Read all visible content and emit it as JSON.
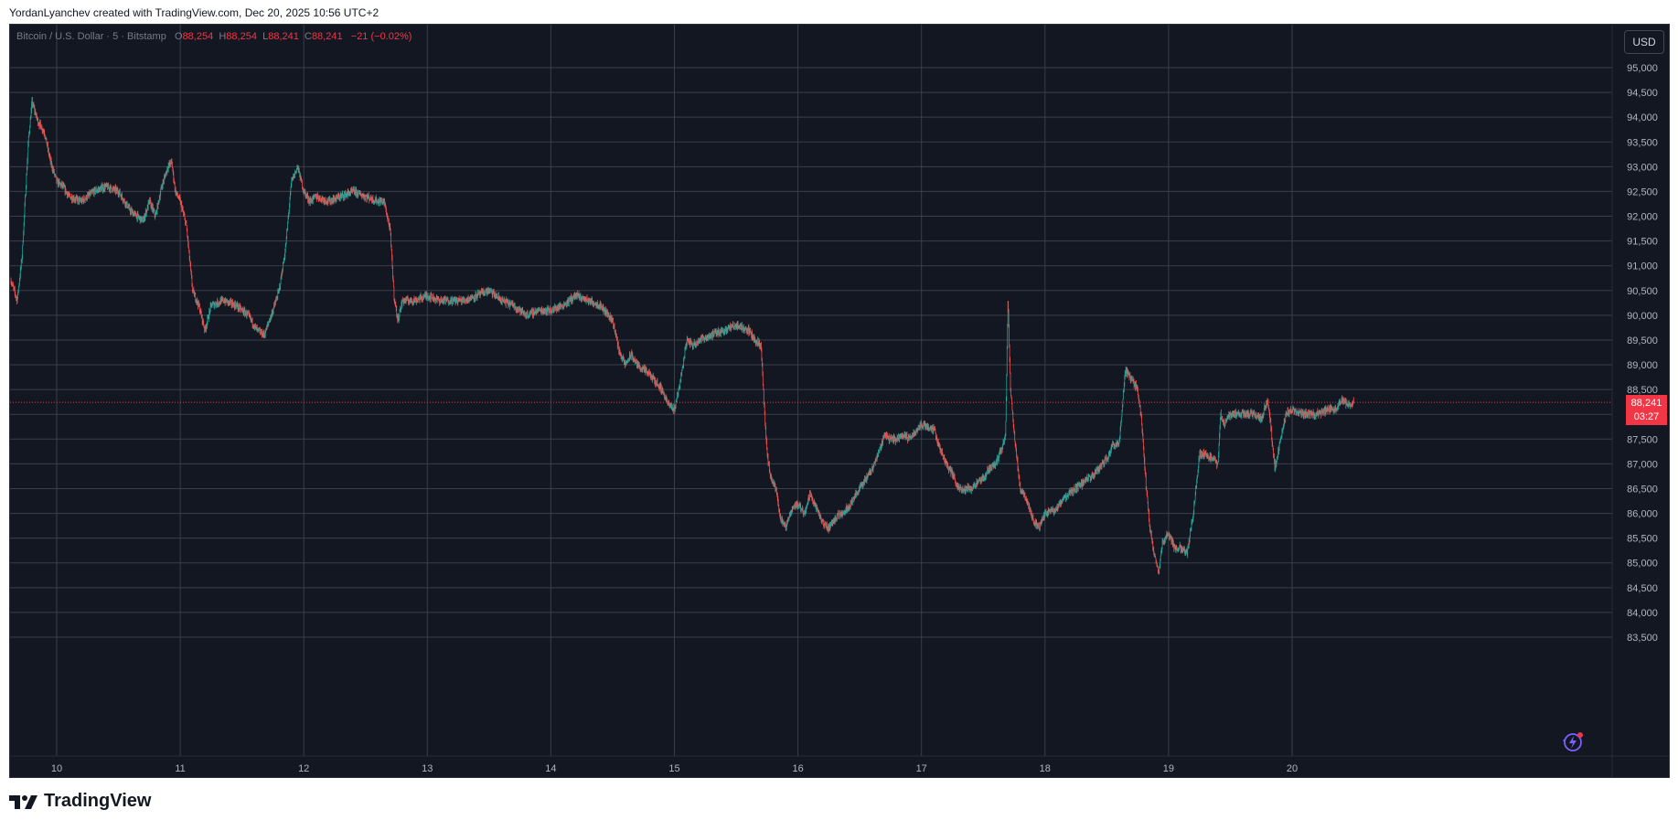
{
  "header": {
    "credit": "YordanLyanchev created with TradingView.com, Dec 20, 2025 10:56 UTC+2"
  },
  "legend": {
    "symbol": "Bitcoin / U.S. Dollar · 5 · Bitstamp",
    "o_key": "O",
    "o_val": "88,254",
    "h_key": "H",
    "h_val": "88,254",
    "l_key": "L",
    "l_val": "88,241",
    "c_key": "C",
    "c_val": "88,241",
    "change": "−21 (−0.02%)"
  },
  "currency_button": "USD",
  "last_price": {
    "value": "88,241",
    "countdown": "03:27"
  },
  "footer": {
    "brand": "TradingView"
  },
  "colors": {
    "up": "#26a69a",
    "down": "#ef5350",
    "last_price": "#f23645",
    "background": "#131722",
    "grid": "#3b3f4b"
  },
  "icons": {
    "spark": "lightning-assistant-icon",
    "logo": "tradingview-logo-icon"
  },
  "chart_data": {
    "type": "candlestick",
    "interval": "5",
    "x_tick_labels": [
      "10",
      "11",
      "12",
      "13",
      "14",
      "15",
      "16",
      "17",
      "18",
      "19",
      "20"
    ],
    "y_tick_labels": [
      "95,000",
      "94,500",
      "94,000",
      "93,500",
      "93,000",
      "92,500",
      "92,000",
      "91,500",
      "91,000",
      "90,500",
      "90,000",
      "89,500",
      "89,000",
      "88,500",
      "88,000",
      "87,500",
      "87,000",
      "86,500",
      "86,000",
      "85,500",
      "85,000",
      "84,500",
      "84,000",
      "83,500"
    ],
    "ylim": [
      83350,
      95500
    ],
    "xlim": [
      9.62,
      20.75
    ],
    "last_price": 88241,
    "price_path": [
      [
        9.63,
        90700
      ],
      [
        9.68,
        90300
      ],
      [
        9.72,
        91200
      ],
      [
        9.77,
        93500
      ],
      [
        9.8,
        94300
      ],
      [
        9.85,
        93900
      ],
      [
        9.9,
        93700
      ],
      [
        9.95,
        93100
      ],
      [
        10.0,
        92700
      ],
      [
        10.05,
        92600
      ],
      [
        10.1,
        92400
      ],
      [
        10.2,
        92300
      ],
      [
        10.3,
        92500
      ],
      [
        10.4,
        92600
      ],
      [
        10.5,
        92500
      ],
      [
        10.6,
        92100
      ],
      [
        10.7,
        91900
      ],
      [
        10.75,
        92300
      ],
      [
        10.8,
        92000
      ],
      [
        10.85,
        92600
      ],
      [
        10.9,
        93000
      ],
      [
        10.93,
        93100
      ],
      [
        10.96,
        92500
      ],
      [
        11.0,
        92300
      ],
      [
        11.05,
        91800
      ],
      [
        11.1,
        90500
      ],
      [
        11.15,
        90200
      ],
      [
        11.2,
        89700
      ],
      [
        11.25,
        90200
      ],
      [
        11.35,
        90300
      ],
      [
        11.45,
        90200
      ],
      [
        11.55,
        90000
      ],
      [
        11.62,
        89700
      ],
      [
        11.68,
        89600
      ],
      [
        11.75,
        90100
      ],
      [
        11.8,
        90500
      ],
      [
        11.85,
        91300
      ],
      [
        11.9,
        92700
      ],
      [
        11.95,
        93000
      ],
      [
        12.0,
        92500
      ],
      [
        12.05,
        92300
      ],
      [
        12.1,
        92400
      ],
      [
        12.2,
        92300
      ],
      [
        12.3,
        92400
      ],
      [
        12.4,
        92500
      ],
      [
        12.5,
        92400
      ],
      [
        12.6,
        92300
      ],
      [
        12.65,
        92300
      ],
      [
        12.7,
        91700
      ],
      [
        12.73,
        90400
      ],
      [
        12.76,
        89900
      ],
      [
        12.8,
        90300
      ],
      [
        12.9,
        90300
      ],
      [
        13.0,
        90400
      ],
      [
        13.1,
        90300
      ],
      [
        13.2,
        90300
      ],
      [
        13.3,
        90300
      ],
      [
        13.4,
        90400
      ],
      [
        13.5,
        90500
      ],
      [
        13.6,
        90300
      ],
      [
        13.7,
        90200
      ],
      [
        13.8,
        90000
      ],
      [
        13.9,
        90100
      ],
      [
        14.0,
        90100
      ],
      [
        14.1,
        90200
      ],
      [
        14.2,
        90400
      ],
      [
        14.3,
        90300
      ],
      [
        14.4,
        90200
      ],
      [
        14.5,
        89900
      ],
      [
        14.55,
        89300
      ],
      [
        14.6,
        89000
      ],
      [
        14.65,
        89200
      ],
      [
        14.7,
        89000
      ],
      [
        14.8,
        88800
      ],
      [
        14.9,
        88500
      ],
      [
        14.95,
        88200
      ],
      [
        15.0,
        88100
      ],
      [
        15.05,
        88700
      ],
      [
        15.1,
        89500
      ],
      [
        15.15,
        89400
      ],
      [
        15.2,
        89500
      ],
      [
        15.3,
        89600
      ],
      [
        15.4,
        89700
      ],
      [
        15.5,
        89800
      ],
      [
        15.6,
        89700
      ],
      [
        15.65,
        89500
      ],
      [
        15.7,
        89400
      ],
      [
        15.73,
        88000
      ],
      [
        15.75,
        87200
      ],
      [
        15.78,
        86700
      ],
      [
        15.82,
        86500
      ],
      [
        15.86,
        85900
      ],
      [
        15.9,
        85700
      ],
      [
        15.95,
        86100
      ],
      [
        16.0,
        86200
      ],
      [
        16.05,
        86000
      ],
      [
        16.1,
        86400
      ],
      [
        16.15,
        86100
      ],
      [
        16.2,
        85800
      ],
      [
        16.25,
        85700
      ],
      [
        16.3,
        85900
      ],
      [
        16.35,
        86000
      ],
      [
        16.4,
        86100
      ],
      [
        16.45,
        86300
      ],
      [
        16.5,
        86500
      ],
      [
        16.55,
        86700
      ],
      [
        16.6,
        86900
      ],
      [
        16.65,
        87200
      ],
      [
        16.7,
        87600
      ],
      [
        16.75,
        87500
      ],
      [
        16.8,
        87500
      ],
      [
        16.85,
        87600
      ],
      [
        16.9,
        87500
      ],
      [
        17.0,
        87800
      ],
      [
        17.1,
        87700
      ],
      [
        17.15,
        87300
      ],
      [
        17.2,
        87000
      ],
      [
        17.25,
        86800
      ],
      [
        17.3,
        86500
      ],
      [
        17.35,
        86500
      ],
      [
        17.4,
        86500
      ],
      [
        17.45,
        86600
      ],
      [
        17.5,
        86700
      ],
      [
        17.55,
        86900
      ],
      [
        17.6,
        87000
      ],
      [
        17.65,
        87300
      ],
      [
        17.68,
        87600
      ],
      [
        17.7,
        90300
      ],
      [
        17.72,
        88500
      ],
      [
        17.75,
        87600
      ],
      [
        17.8,
        86500
      ],
      [
        17.85,
        86300
      ],
      [
        17.9,
        85900
      ],
      [
        17.95,
        85700
      ],
      [
        18.0,
        86000
      ],
      [
        18.1,
        86100
      ],
      [
        18.15,
        86300
      ],
      [
        18.2,
        86400
      ],
      [
        18.3,
        86600
      ],
      [
        18.4,
        86800
      ],
      [
        18.5,
        87100
      ],
      [
        18.55,
        87400
      ],
      [
        18.6,
        87400
      ],
      [
        18.62,
        88000
      ],
      [
        18.65,
        88900
      ],
      [
        18.7,
        88700
      ],
      [
        18.75,
        88500
      ],
      [
        18.78,
        87900
      ],
      [
        18.82,
        86500
      ],
      [
        18.85,
        85700
      ],
      [
        18.88,
        85200
      ],
      [
        18.92,
        84800
      ],
      [
        18.95,
        85400
      ],
      [
        19.0,
        85600
      ],
      [
        19.05,
        85300
      ],
      [
        19.1,
        85300
      ],
      [
        19.15,
        85200
      ],
      [
        19.2,
        86000
      ],
      [
        19.25,
        87200
      ],
      [
        19.3,
        87200
      ],
      [
        19.35,
        87100
      ],
      [
        19.4,
        87000
      ],
      [
        19.42,
        88000
      ],
      [
        19.45,
        87800
      ],
      [
        19.5,
        88000
      ],
      [
        19.6,
        88000
      ],
      [
        19.7,
        88000
      ],
      [
        19.75,
        87900
      ],
      [
        19.8,
        88300
      ],
      [
        19.83,
        87700
      ],
      [
        19.86,
        86900
      ],
      [
        19.9,
        87400
      ],
      [
        19.95,
        88000
      ],
      [
        20.0,
        88100
      ],
      [
        20.1,
        88000
      ],
      [
        20.2,
        88000
      ],
      [
        20.3,
        88100
      ],
      [
        20.35,
        88100
      ],
      [
        20.4,
        88300
      ],
      [
        20.45,
        88200
      ],
      [
        20.5,
        88241
      ]
    ]
  }
}
